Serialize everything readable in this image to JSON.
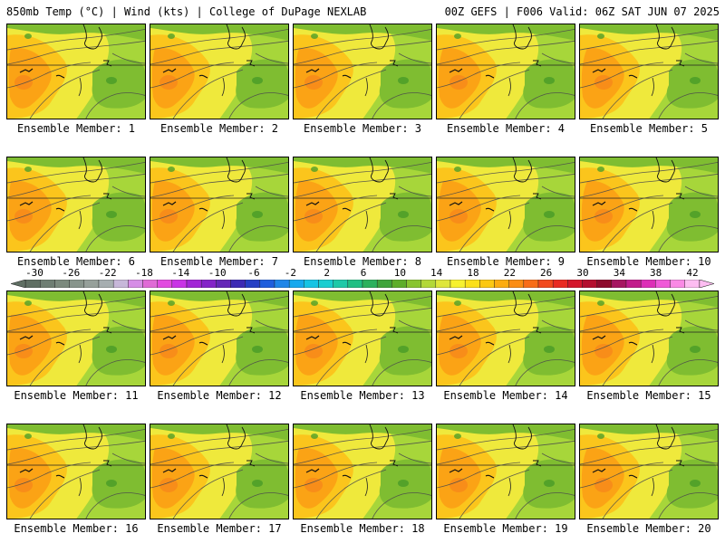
{
  "header": {
    "left_title": "850mb Temp (°C) | Wind (kts) | College of DuPage NEXLAB",
    "right_title": "00Z GEFS | F006 Valid: 06Z SAT JUN 07 2025"
  },
  "colorbar": {
    "tick_labels": [
      "-30",
      "-26",
      "-22",
      "-18",
      "-14",
      "-10",
      "-6",
      "-2",
      "2",
      "6",
      "10",
      "14",
      "18",
      "22",
      "26",
      "30",
      "34",
      "38",
      "42"
    ],
    "colors": [
      "#5f6f63",
      "#6f7e73",
      "#7c8a7e",
      "#88958c",
      "#96a09a",
      "#a6aeb0",
      "#c7b7d9",
      "#d68de6",
      "#e06ad6",
      "#e24be0",
      "#c934e6",
      "#a226d6",
      "#8424c8",
      "#6527b8",
      "#3d2bb4",
      "#2640c4",
      "#1f5fdd",
      "#1f86e8",
      "#16a9ee",
      "#16c4e4",
      "#19ced1",
      "#1ec9a8",
      "#20bf83",
      "#2cb15d",
      "#3fa43b",
      "#5fae2a",
      "#89c52f",
      "#b3d838",
      "#dfe63c",
      "#f7f12f",
      "#fbe019",
      "#fcc812",
      "#fcac10",
      "#fb8d14",
      "#f86d18",
      "#f2491d",
      "#e92a22",
      "#d4162b",
      "#b40f2e",
      "#8e0a2c",
      "#a61661",
      "#c21c8c",
      "#dd2fb7",
      "#f05ad8",
      "#fa8ae5",
      "#fdbdf1"
    ]
  },
  "members": [
    {
      "label": "Ensemble Member: 1"
    },
    {
      "label": "Ensemble Member: 2"
    },
    {
      "label": "Ensemble Member: 3"
    },
    {
      "label": "Ensemble Member: 4"
    },
    {
      "label": "Ensemble Member: 5"
    },
    {
      "label": "Ensemble Member: 6"
    },
    {
      "label": "Ensemble Member: 7"
    },
    {
      "label": "Ensemble Member: 8"
    },
    {
      "label": "Ensemble Member: 9"
    },
    {
      "label": "Ensemble Member: 10"
    },
    {
      "label": "Ensemble Member: 11"
    },
    {
      "label": "Ensemble Member: 12"
    },
    {
      "label": "Ensemble Member: 13"
    },
    {
      "label": "Ensemble Member: 14"
    },
    {
      "label": "Ensemble Member: 15"
    },
    {
      "label": "Ensemble Member: 16"
    },
    {
      "label": "Ensemble Member: 17"
    },
    {
      "label": "Ensemble Member: 18"
    },
    {
      "label": "Ensemble Member: 19"
    },
    {
      "label": "Ensemble Member: 20"
    }
  ],
  "map_colors": {
    "base": "#a7d63a",
    "yellow": "#f2ea3c",
    "light_orange": "#fbc51c",
    "orange": "#fba315",
    "dark_orange": "#f78a1a",
    "green": "#7fbd31",
    "dark_green": "#4f9f29"
  }
}
